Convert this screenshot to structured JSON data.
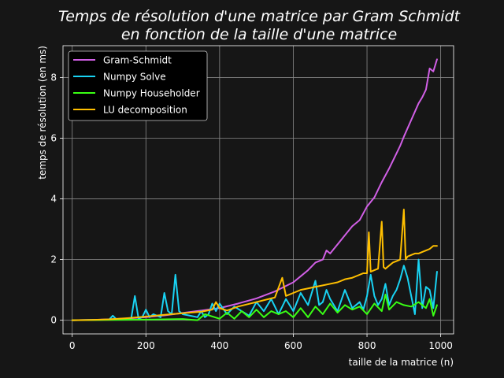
{
  "chart_data": {
    "type": "line",
    "title_lines": [
      "Temps de résolution d'une matrice par Gram Schmidt",
      "en fonction de la taille d'une matrice"
    ],
    "xlabel": "taille de la matrice (n)",
    "ylabel": "temps de résolution (en ms)",
    "xlim": [
      -25,
      1035
    ],
    "ylim": [
      -0.45,
      9.05
    ],
    "xticks": [
      0,
      200,
      400,
      600,
      800,
      1000
    ],
    "yticks": [
      0,
      2,
      4,
      6,
      8
    ],
    "grid": true,
    "legend_position": "upper-left",
    "background": "#161616",
    "series": [
      {
        "name": "Gram-Schmidt",
        "color": "#d15fe6",
        "x": [
          0,
          50,
          100,
          150,
          200,
          250,
          300,
          350,
          400,
          450,
          500,
          550,
          600,
          620,
          640,
          660,
          680,
          690,
          700,
          720,
          740,
          760,
          780,
          800,
          820,
          840,
          860,
          880,
          890,
          900,
          920,
          940,
          950,
          960,
          970,
          980,
          990
        ],
        "y": [
          0,
          0.01,
          0.03,
          0.06,
          0.1,
          0.16,
          0.24,
          0.32,
          0.4,
          0.55,
          0.72,
          0.95,
          1.25,
          1.45,
          1.65,
          1.9,
          2.0,
          2.3,
          2.2,
          2.5,
          2.8,
          3.1,
          3.3,
          3.75,
          4.05,
          4.55,
          5.0,
          5.5,
          5.75,
          6.05,
          6.6,
          7.15,
          7.35,
          7.6,
          8.3,
          8.2,
          8.6
        ]
      },
      {
        "name": "Numpy Solve",
        "color": "#19d3f3",
        "x": [
          0,
          100,
          110,
          120,
          160,
          170,
          180,
          190,
          200,
          210,
          220,
          240,
          250,
          260,
          270,
          280,
          290,
          300,
          320,
          340,
          350,
          360,
          370,
          380,
          390,
          400,
          420,
          440,
          460,
          480,
          500,
          520,
          540,
          560,
          580,
          600,
          620,
          640,
          660,
          670,
          680,
          690,
          700,
          720,
          740,
          760,
          780,
          790,
          800,
          810,
          820,
          830,
          840,
          850,
          860,
          870,
          880,
          890,
          900,
          910,
          920,
          930,
          940,
          950,
          960,
          970,
          980,
          990
        ],
        "y": [
          0,
          0.02,
          0.15,
          0.03,
          0.05,
          0.8,
          0.05,
          0.1,
          0.35,
          0.1,
          0.2,
          0.1,
          0.9,
          0.3,
          0.2,
          1.5,
          0.3,
          0.2,
          0.15,
          0.1,
          0.3,
          0.1,
          0.2,
          0.55,
          0.3,
          0.55,
          0.2,
          0.45,
          0.3,
          0.15,
          0.6,
          0.3,
          0.7,
          0.2,
          0.7,
          0.3,
          0.9,
          0.5,
          1.3,
          0.5,
          0.6,
          1.0,
          0.7,
          0.3,
          1.0,
          0.4,
          0.6,
          0.35,
          0.8,
          1.5,
          0.8,
          0.5,
          0.7,
          1.2,
          0.5,
          0.8,
          1.0,
          1.35,
          1.8,
          1.4,
          0.8,
          0.2,
          2.0,
          0.4,
          1.1,
          1.0,
          0.4,
          1.6
        ]
      },
      {
        "name": "Numpy Householder",
        "color": "#39ff14",
        "x": [
          0,
          100,
          200,
          300,
          340,
          360,
          400,
          420,
          440,
          460,
          480,
          500,
          520,
          540,
          560,
          580,
          600,
          620,
          640,
          660,
          680,
          700,
          720,
          740,
          760,
          780,
          800,
          820,
          840,
          850,
          860,
          880,
          900,
          920,
          940,
          960,
          970,
          980,
          990
        ],
        "y": [
          0,
          0.01,
          0.02,
          0.04,
          0.0,
          0.2,
          0.05,
          0.25,
          0.05,
          0.3,
          0.1,
          0.35,
          0.1,
          0.3,
          0.2,
          0.3,
          0.1,
          0.4,
          0.1,
          0.45,
          0.2,
          0.55,
          0.25,
          0.5,
          0.35,
          0.45,
          0.2,
          0.55,
          0.3,
          0.85,
          0.35,
          0.6,
          0.5,
          0.45,
          0.6,
          0.4,
          0.7,
          0.15,
          0.5
        ]
      },
      {
        "name": "LU decomposition",
        "color": "#ffbf00",
        "x": [
          0,
          50,
          100,
          150,
          200,
          250,
          300,
          350,
          380,
          390,
          400,
          420,
          450,
          500,
          550,
          570,
          580,
          600,
          620,
          640,
          660,
          680,
          700,
          720,
          740,
          760,
          780,
          790,
          800,
          805,
          810,
          820,
          830,
          840,
          845,
          850,
          860,
          870,
          880,
          890,
          900,
          905,
          910,
          920,
          930,
          940,
          950,
          960,
          970,
          980,
          990
        ],
        "y": [
          0,
          0.01,
          0.03,
          0.07,
          0.12,
          0.18,
          0.23,
          0.28,
          0.35,
          0.6,
          0.4,
          0.32,
          0.45,
          0.6,
          0.75,
          1.4,
          0.8,
          0.9,
          1.0,
          1.05,
          1.1,
          1.15,
          1.2,
          1.25,
          1.35,
          1.4,
          1.5,
          1.55,
          1.55,
          2.9,
          1.6,
          1.65,
          1.7,
          3.25,
          1.75,
          1.7,
          1.8,
          1.9,
          1.95,
          2.0,
          3.65,
          2.0,
          2.1,
          2.15,
          2.2,
          2.2,
          2.25,
          2.3,
          2.35,
          2.45,
          2.45
        ]
      }
    ]
  }
}
